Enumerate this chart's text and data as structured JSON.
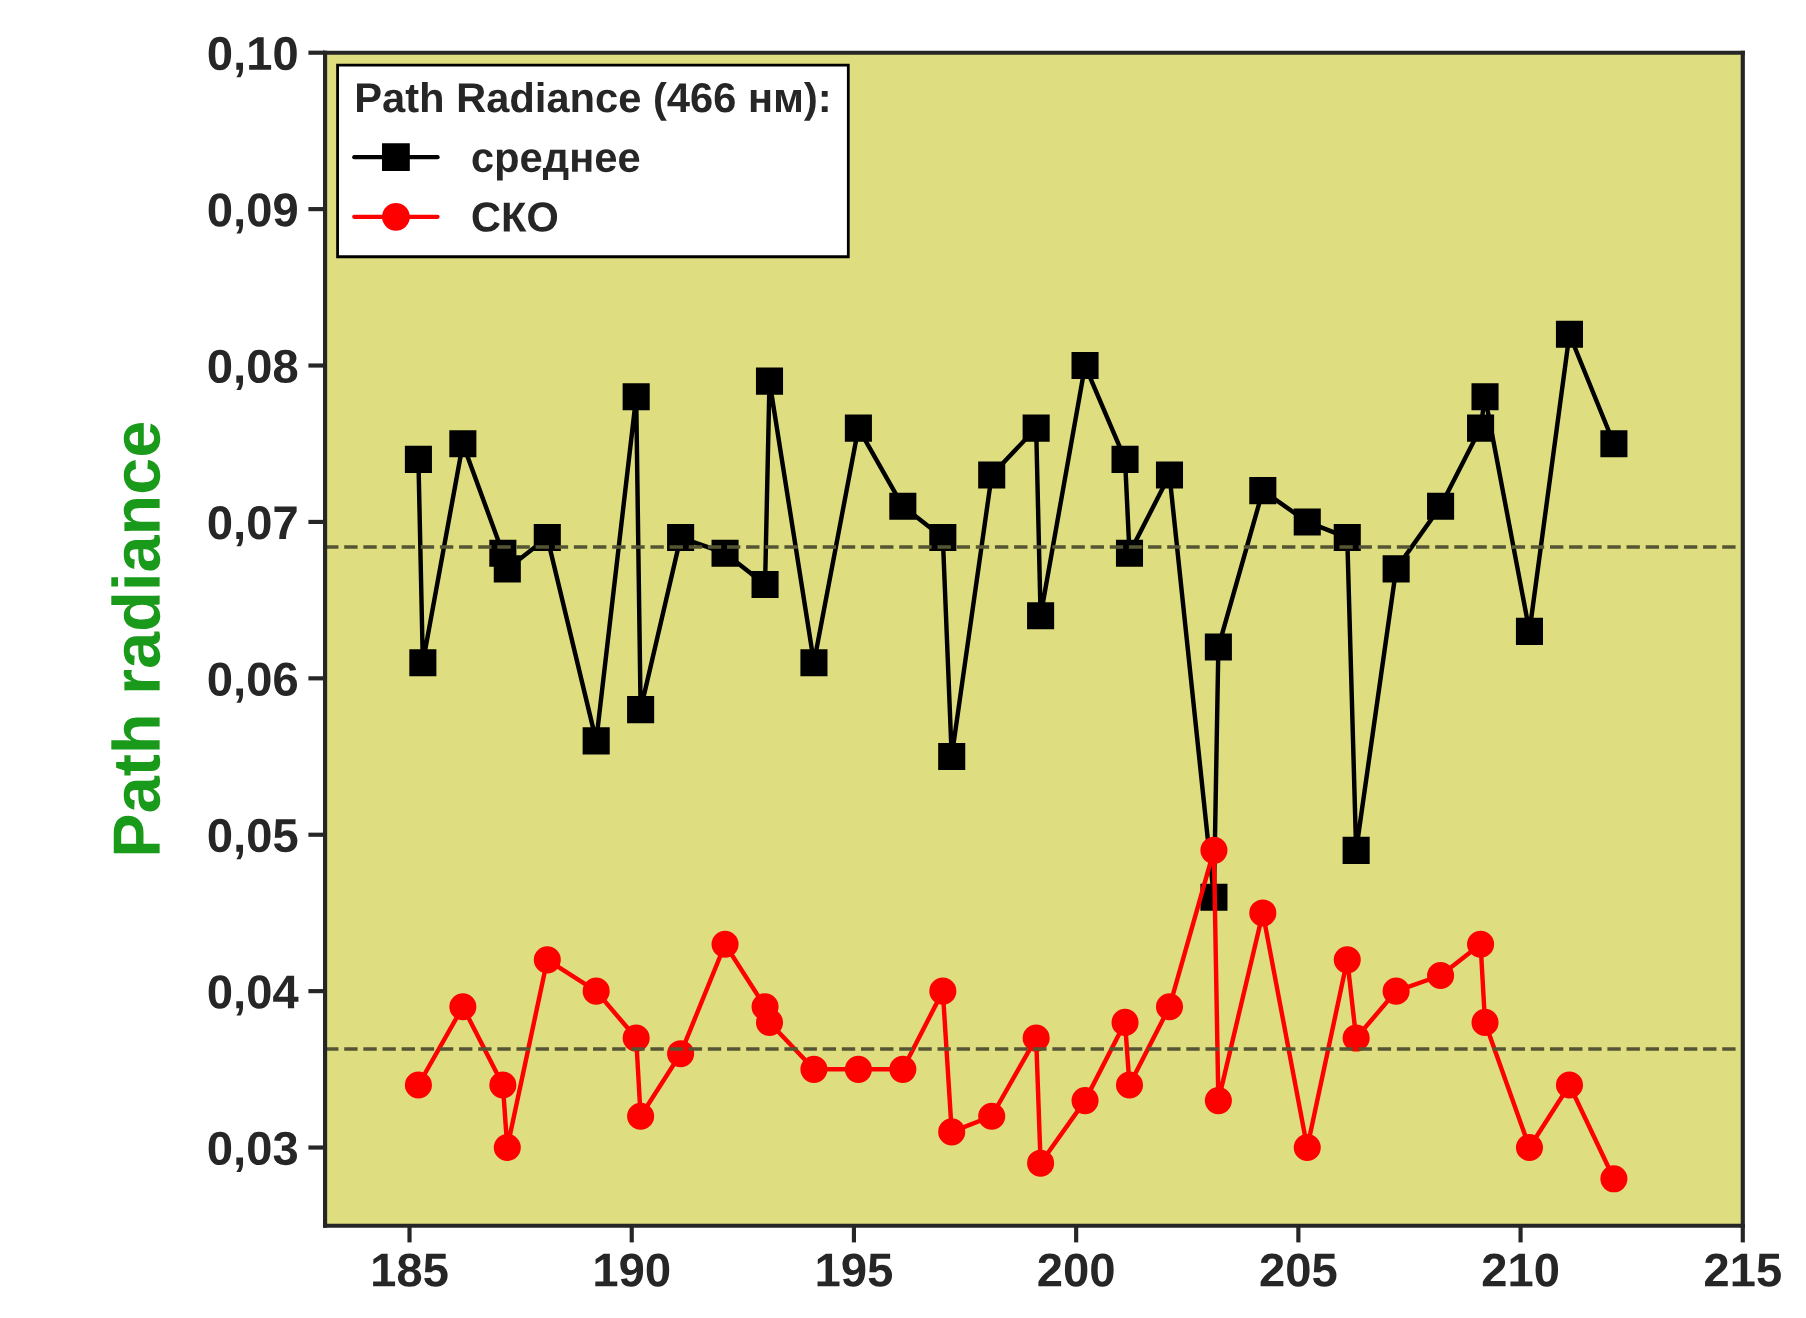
{
  "chart_data": {
    "type": "line",
    "ylabel": "Path radiance",
    "legend_title": "Path Radiance (466 нм):",
    "legend": "top left",
    "grid": false,
    "line_style": "solid",
    "xlim": [
      183.1,
      215
    ],
    "xticks": [
      185,
      190,
      195,
      200,
      205,
      210,
      215
    ],
    "ylim": [
      0.025,
      0.1
    ],
    "yticks": [
      {
        "value": 0.03,
        "label": "0,03"
      },
      {
        "value": 0.04,
        "label": "0,04"
      },
      {
        "value": 0.05,
        "label": "0,05"
      },
      {
        "value": 0.06,
        "label": "0,06"
      },
      {
        "value": 0.07,
        "label": "0,07"
      },
      {
        "value": 0.08,
        "label": "0,08"
      },
      {
        "value": 0.09,
        "label": "0,09"
      },
      {
        "value": 0.1,
        "label": "0,10"
      }
    ],
    "series": [
      {
        "name": "среднее",
        "color": "#000000",
        "marker": "square",
        "x": [
          185.2,
          185.3,
          186.2,
          187.1,
          187.2,
          188.1,
          189.2,
          190.1,
          190.2,
          191.1,
          192.1,
          193.0,
          193.1,
          194.1,
          195.1,
          196.1,
          197.0,
          197.2,
          198.1,
          199.1,
          199.2,
          200.2,
          201.1,
          201.2,
          202.1,
          203.1,
          203.2,
          204.2,
          205.2,
          206.1,
          206.3,
          207.2,
          208.2,
          209.1,
          209.2,
          210.2,
          211.1,
          212.1
        ],
        "values": [
          0.074,
          0.061,
          0.075,
          0.068,
          0.067,
          0.069,
          0.056,
          0.078,
          0.058,
          0.069,
          0.068,
          0.066,
          0.079,
          0.061,
          0.076,
          0.071,
          0.069,
          0.055,
          0.073,
          0.076,
          0.064,
          0.08,
          0.074,
          0.068,
          0.073,
          0.046,
          0.062,
          0.072,
          0.07,
          0.069,
          0.049,
          0.067,
          0.071,
          0.076,
          0.078,
          0.063,
          0.082,
          0.075
        ]
      },
      {
        "name": "СКО",
        "color": "#ff0000",
        "marker": "circle",
        "x": [
          185.2,
          186.2,
          187.1,
          187.2,
          188.1,
          189.2,
          190.1,
          190.2,
          191.1,
          192.1,
          193.0,
          193.1,
          194.1,
          195.1,
          196.1,
          197.0,
          197.2,
          198.1,
          199.1,
          199.2,
          200.2,
          201.1,
          201.2,
          202.1,
          203.1,
          203.2,
          204.2,
          205.2,
          206.1,
          206.3,
          207.2,
          208.2,
          209.1,
          209.2,
          210.2,
          211.1,
          212.1
        ],
        "values": [
          0.034,
          0.039,
          0.034,
          0.03,
          0.042,
          0.04,
          0.037,
          0.032,
          0.036,
          0.043,
          0.039,
          0.038,
          0.035,
          0.035,
          0.035,
          0.04,
          0.031,
          0.032,
          0.037,
          0.029,
          0.033,
          0.038,
          0.034,
          0.039,
          0.049,
          0.033,
          0.045,
          0.03,
          0.042,
          0.037,
          0.04,
          0.041,
          0.043,
          0.038,
          0.03,
          0.034,
          0.028
        ]
      }
    ],
    "ref_lines": [
      {
        "axis": "y",
        "value": 0.0684,
        "color": "#555533",
        "line_style": "dashed"
      },
      {
        "axis": "y",
        "value": 0.0363,
        "color": "#555533",
        "line_style": "dashed"
      }
    ]
  }
}
